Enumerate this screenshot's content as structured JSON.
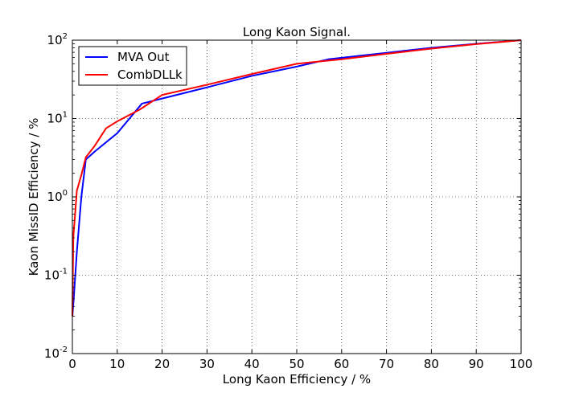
{
  "chart_data": {
    "type": "line",
    "title": "Long Kaon Signal.",
    "xlabel": "Long Kaon Efficiency / %",
    "ylabel": "Kaon MissID Efficiency / %",
    "xlim": [
      0,
      100
    ],
    "ylim": [
      0.01,
      100
    ],
    "yscale": "log",
    "grid": true,
    "legend_position": "top-left",
    "x_ticks": [
      "0",
      "10",
      "20",
      "30",
      "40",
      "50",
      "60",
      "70",
      "80",
      "90",
      "100"
    ],
    "y_ticks": [
      {
        "base": "10",
        "exp": "-2"
      },
      {
        "base": "10",
        "exp": "-1"
      },
      {
        "base": "10",
        "exp": "0"
      },
      {
        "base": "10",
        "exp": "1"
      },
      {
        "base": "10",
        "exp": "2"
      }
    ],
    "series": [
      {
        "name": "MVA Out",
        "color": "#0000ff",
        "x": [
          0,
          0.3,
          1,
          2,
          3,
          5,
          10,
          15.5,
          20,
          30,
          40,
          50,
          57,
          70,
          80,
          90,
          100
        ],
        "y": [
          0.03,
          0.05,
          0.2,
          1.0,
          3.0,
          3.8,
          6.5,
          15.5,
          18,
          25,
          35,
          46,
          57,
          69,
          80,
          90,
          100
        ]
      },
      {
        "name": "CombDLLk",
        "color": "#ff0000",
        "x": [
          0,
          0.2,
          0.5,
          1,
          2,
          3,
          5,
          7.5,
          10,
          15,
          20,
          30,
          40,
          50,
          60,
          70,
          80,
          90,
          100
        ],
        "y": [
          0.03,
          0.3,
          0.5,
          1.2,
          1.9,
          3.2,
          4.5,
          7.5,
          9.2,
          13,
          20,
          27,
          37,
          50,
          57,
          67,
          78,
          89,
          100
        ]
      }
    ]
  }
}
